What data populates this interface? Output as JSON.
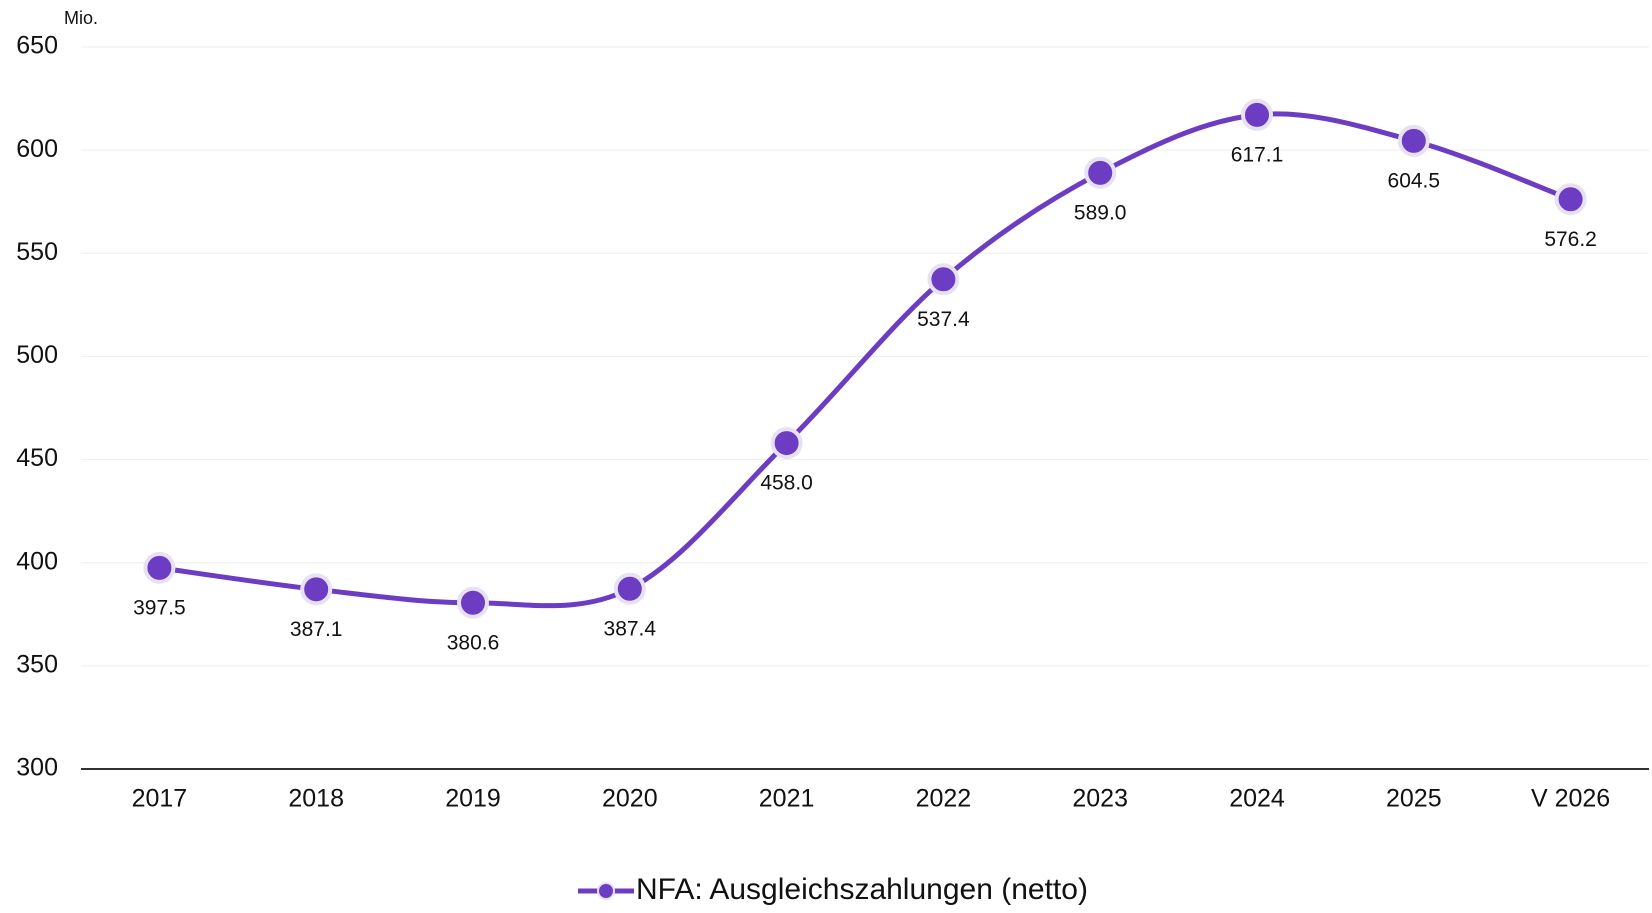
{
  "chart_data": {
    "type": "line",
    "unit_label": "Mio.",
    "categories": [
      "2017",
      "2018",
      "2019",
      "2020",
      "2021",
      "2022",
      "2023",
      "2024",
      "2025",
      "V 2026"
    ],
    "series": [
      {
        "name": "NFA: Ausgleichszahlungen (netto)",
        "color": "#6c3cc3",
        "values": [
          397.5,
          387.1,
          380.6,
          387.4,
          458.0,
          537.4,
          589.0,
          617.1,
          604.5,
          576.2
        ],
        "value_labels": [
          "397.5",
          "387.1",
          "380.6",
          "387.4",
          "458.0",
          "537.4",
          "589.0",
          "617.1",
          "604.5",
          "576.2"
        ]
      }
    ],
    "ylim": [
      300,
      650
    ],
    "yticks": [
      300,
      350,
      400,
      450,
      500,
      550,
      600,
      650
    ],
    "grid": true,
    "legend": "bottom"
  }
}
